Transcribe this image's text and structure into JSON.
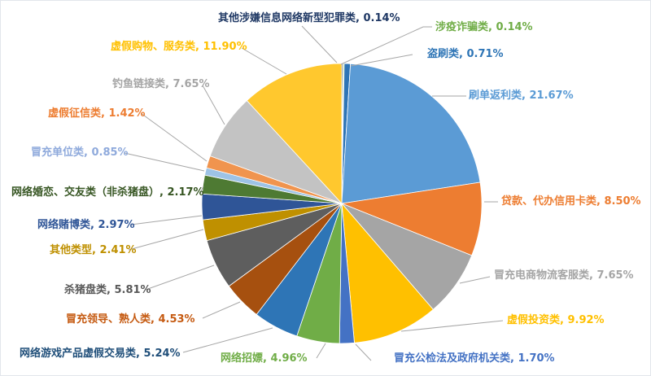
{
  "chart_data": {
    "type": "pie",
    "title": "",
    "legend_position": "none",
    "label_format": "<category>, <percent>",
    "slices": [
      {
        "label": "其他涉嫌信息网络新型犯罪类",
        "value": 0.14,
        "value_text": "0.14%",
        "color": "#44546A",
        "label_color": "#1F3864"
      },
      {
        "label": "涉疫诈骗类",
        "value": 0.14,
        "value_text": "0.14%",
        "color": "#A9D18E",
        "label_color": "#70AD47"
      },
      {
        "label": "盗刷类",
        "value": 0.71,
        "value_text": "0.71%",
        "color": "#2E75B6",
        "label_color": "#2E75B6"
      },
      {
        "label": "刷单返利类",
        "value": 21.67,
        "value_text": "21.67%",
        "color": "#5B9BD5",
        "label_color": "#5B9BD5"
      },
      {
        "label": "贷款、代办信用卡类",
        "value": 8.5,
        "value_text": "8.50%",
        "color": "#ED7D31",
        "label_color": "#ED7D31"
      },
      {
        "label": "冒充电商物流客服类",
        "value": 7.65,
        "value_text": "7.65%",
        "color": "#A5A5A5",
        "label_color": "#A5A5A5"
      },
      {
        "label": "虚假投资类",
        "value": 9.92,
        "value_text": "9.92%",
        "color": "#FFC000",
        "label_color": "#FFC000"
      },
      {
        "label": "冒充公检法及政府机关类",
        "value": 1.7,
        "value_text": "1.70%",
        "color": "#4472C4",
        "label_color": "#4472C4"
      },
      {
        "label": "网络招嫖",
        "value": 4.96,
        "value_text": "4.96%",
        "color": "#70AD47",
        "label_color": "#70AD47"
      },
      {
        "label": "网络游戏产品虚假交易类",
        "value": 5.24,
        "value_text": "5.24%",
        "color": "#2E75B6",
        "label_color": "#1F4E79"
      },
      {
        "label": "冒充领导、熟人类",
        "value": 4.53,
        "value_text": "4.53%",
        "color": "#A6500F",
        "label_color": "#C55A11"
      },
      {
        "label": "杀猪盘类",
        "value": 5.81,
        "value_text": "5.81%",
        "color": "#5E5E5E",
        "label_color": "#595959"
      },
      {
        "label": "其他类型",
        "value": 2.41,
        "value_text": "2.41%",
        "color": "#BF9000",
        "label_color": "#BF9000"
      },
      {
        "label": "网络赌博类",
        "value": 2.97,
        "value_text": "2.97%",
        "color": "#2F5597",
        "label_color": "#2F5597"
      },
      {
        "label": "网络婚恋、交友类（非杀猪盘）",
        "value": 2.17,
        "value_text": "2.17%",
        "color": "#4E7A33",
        "label_color": "#375623"
      },
      {
        "label": "冒充单位类",
        "value": 0.85,
        "value_text": "0.85%",
        "color": "#9DC3E6",
        "label_color": "#8FAADC"
      },
      {
        "label": "虚假征信类",
        "value": 1.42,
        "value_text": "1.42%",
        "color": "#F0944E",
        "label_color": "#ED7D31"
      },
      {
        "label": "钓鱼链接类",
        "value": 7.65,
        "value_text": "7.65%",
        "color": "#C3C3C3",
        "label_color": "#A5A5A5"
      },
      {
        "label": "虚假购物、服务类",
        "value": 11.9,
        "value_text": "11.90%",
        "color": "#FFC82E",
        "label_color": "#FFC000"
      }
    ]
  },
  "colors": {
    "background": "#FFFFFF",
    "border": "#E2E6EC",
    "leader_line": "#A6A6A6",
    "slice_border": "#FFFFFF"
  }
}
